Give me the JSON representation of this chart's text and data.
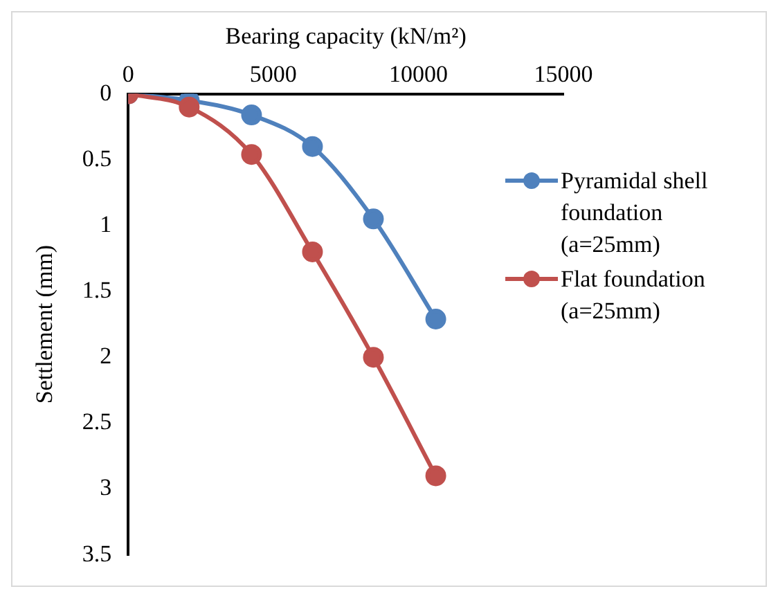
{
  "chart_data": {
    "type": "line",
    "xlabel": "Bearing capacity (kN/m²)",
    "ylabel": "Settlement (mm)",
    "xlim": [
      0,
      15000
    ],
    "xticks": [
      0,
      5000,
      10000,
      15000
    ],
    "ylim": [
      3.5,
      0
    ],
    "yticks": [
      0,
      0.5,
      1,
      1.5,
      2,
      2.5,
      3,
      3.5
    ],
    "marker": "circle",
    "grid": false,
    "legend": "right",
    "series": [
      {
        "name": "Pyramidal shell foundation (a=25mm)",
        "color": "#4f81bd",
        "x": [
          0,
          2100,
          4250,
          6350,
          8450,
          10600
        ],
        "values": [
          0,
          0.05,
          0.16,
          0.4,
          0.95,
          1.71
        ]
      },
      {
        "name": "Flat foundation (a=25mm)",
        "color": "#c0504d",
        "x": [
          0,
          2100,
          4250,
          6350,
          8450,
          10600
        ],
        "values": [
          0,
          0.1,
          0.46,
          1.2,
          2.0,
          2.9
        ]
      }
    ]
  }
}
